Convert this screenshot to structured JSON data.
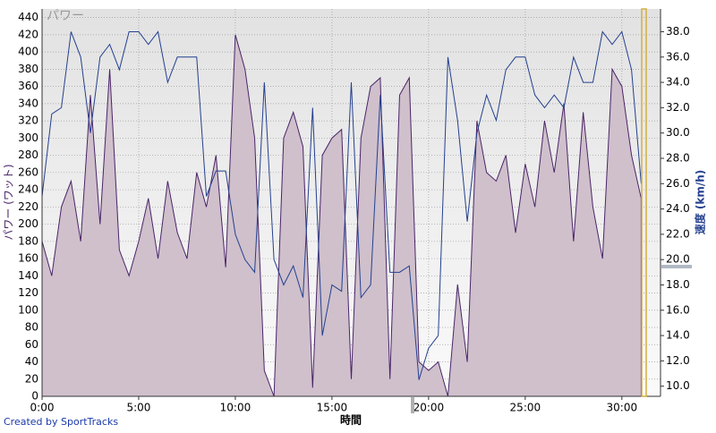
{
  "chart_data": {
    "type": "area-line",
    "watermark": "パワー",
    "xlabel": "時間",
    "ylabel": "パワー (ワット)",
    "y2label": "速度 (km/h)",
    "credit": "Created by SportTracks",
    "grid": true,
    "x": [
      0,
      0.5,
      1,
      1.5,
      2,
      2.5,
      3,
      3.5,
      4,
      4.5,
      5,
      5.5,
      6,
      6.5,
      7,
      7.5,
      8,
      8.5,
      9,
      9.5,
      10,
      10.5,
      11,
      11.5,
      12,
      12.5,
      13,
      13.5,
      14,
      14.5,
      15,
      15.5,
      16,
      16.5,
      17,
      17.5,
      18,
      18.5,
      19,
      19.5,
      20,
      20.5,
      21,
      21.5,
      22,
      22.5,
      23,
      23.5,
      24,
      24.5,
      25,
      25.5,
      26,
      26.5,
      27,
      27.5,
      28,
      28.5,
      29,
      29.5,
      30,
      30.5,
      31
    ],
    "xlim": [
      0,
      32
    ],
    "xticks": [
      {
        "value": 0,
        "label": "0:00"
      },
      {
        "value": 5,
        "label": "5:00"
      },
      {
        "value": 10,
        "label": "10:00"
      },
      {
        "value": 15,
        "label": "15:00"
      },
      {
        "value": 20,
        "label": "20:00"
      },
      {
        "value": 25,
        "label": "25:00"
      },
      {
        "value": 30,
        "label": "30:00"
      }
    ],
    "ylim": [
      0,
      450
    ],
    "yticks": [
      0,
      20,
      40,
      60,
      80,
      100,
      120,
      140,
      160,
      180,
      200,
      220,
      240,
      260,
      280,
      300,
      320,
      340,
      360,
      380,
      400,
      420,
      440
    ],
    "y2lim": [
      9.2,
      39.8
    ],
    "y2ticks": [
      {
        "value": 10,
        "label": "10.0"
      },
      {
        "value": 12,
        "label": "12.0"
      },
      {
        "value": 14,
        "label": "14.0"
      },
      {
        "value": 16,
        "label": "16.0"
      },
      {
        "value": 18,
        "label": "18.0"
      },
      {
        "value": 20,
        "label": "20.0"
      },
      {
        "value": 22,
        "label": "22.0"
      },
      {
        "value": 24,
        "label": "24.0"
      },
      {
        "value": 26,
        "label": "26.0"
      },
      {
        "value": 28,
        "label": "28.0"
      },
      {
        "value": 30,
        "label": "30.0"
      },
      {
        "value": 32,
        "label": "32.0"
      },
      {
        "value": 34,
        "label": "34.0"
      },
      {
        "value": 36,
        "label": "36.0"
      },
      {
        "value": 38,
        "label": "38.0"
      }
    ],
    "series": [
      {
        "kind": "area",
        "color": "#4a2468",
        "fill": "#cfc0cc",
        "values": [
          180,
          140,
          220,
          250,
          180,
          350,
          200,
          380,
          170,
          140,
          180,
          230,
          160,
          250,
          190,
          160,
          260,
          220,
          280,
          150,
          420,
          380,
          300,
          30,
          0,
          300,
          330,
          290,
          10,
          280,
          300,
          310,
          20,
          300,
          360,
          370,
          20,
          350,
          370,
          40,
          30,
          40,
          0,
          130,
          40,
          320,
          260,
          250,
          280,
          190,
          270,
          220,
          320,
          260,
          340,
          180,
          330,
          220,
          160,
          380,
          360,
          280,
          230
        ]
      },
      {
        "kind": "line",
        "axis": "y2",
        "color": "#24408f",
        "values": [
          25,
          31.5,
          32,
          38,
          36,
          30,
          36,
          37,
          35,
          38,
          38,
          37,
          38,
          34,
          36,
          36,
          36,
          25,
          27,
          27,
          22,
          20,
          19,
          34,
          20,
          18,
          19.5,
          17,
          32,
          14,
          18,
          17.5,
          34,
          17,
          18,
          33,
          19,
          19,
          19.5,
          10.5,
          13,
          14,
          36,
          31,
          23,
          30,
          33,
          31,
          35,
          36,
          36,
          33,
          32,
          33,
          32,
          36,
          34,
          34,
          38,
          37,
          38,
          35,
          26
        ]
      }
    ]
  }
}
